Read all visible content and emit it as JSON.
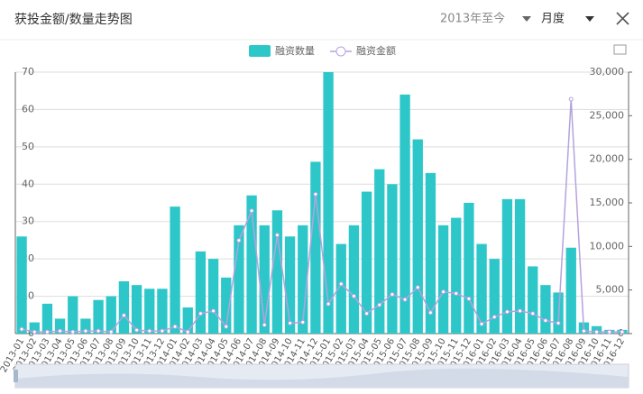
{
  "header": {
    "title": "获投金额/数量走势图",
    "period": "2013年至今",
    "granularity": "月度"
  },
  "chart_data": {
    "type": "bar-line",
    "categories": [
      "2013-01",
      "2013-02",
      "2013-03",
      "2013-04",
      "2013-05",
      "2013-06",
      "2013-07",
      "2013-08",
      "2013-09",
      "2013-10",
      "2013-11",
      "2013-12",
      "2014-01",
      "2014-02",
      "2014-03",
      "2014-04",
      "2014-05",
      "2014-06",
      "2014-07",
      "2014-08",
      "2014-09",
      "2014-10",
      "2014-11",
      "2014-12",
      "2015-01",
      "2015-02",
      "2015-03",
      "2015-04",
      "2015-05",
      "2015-06",
      "2015-07",
      "2015-08",
      "2015-09",
      "2015-10",
      "2015-11",
      "2015-12",
      "2016-01",
      "2016-02",
      "2016-03",
      "2016-04",
      "2016-05",
      "2016-06",
      "2016-07",
      "2016-08",
      "2016-09",
      "2016-10",
      "2016-11",
      "2016-12"
    ],
    "series": [
      {
        "name": "融资数量",
        "color": "#2ec7c9",
        "kind": "bar",
        "values": [
          26,
          3,
          8,
          4,
          10,
          4,
          9,
          10,
          14,
          13,
          12,
          12,
          34,
          7,
          22,
          20,
          15,
          29,
          37,
          29,
          33,
          26,
          29,
          46,
          70,
          24,
          29,
          38,
          44,
          40,
          64,
          52,
          43,
          29,
          31,
          35,
          24,
          20,
          36,
          36,
          18,
          13,
          11,
          23,
          3,
          2,
          1,
          1
        ]
      },
      {
        "name": "融资金额",
        "color": "#b6a2de",
        "kind": "line",
        "axis": "y2",
        "values": [
          500,
          200,
          200,
          300,
          200,
          300,
          300,
          200,
          2100,
          400,
          300,
          300,
          800,
          200,
          2300,
          2600,
          800,
          10700,
          14100,
          1000,
          11300,
          1200,
          1300,
          16000,
          3400,
          5700,
          4300,
          2300,
          3300,
          4500,
          3900,
          5300,
          2400,
          4800,
          4600,
          4000,
          1100,
          1900,
          2500,
          2600,
          2300,
          1500,
          1200,
          26900,
          300,
          200,
          200,
          200
        ]
      }
    ],
    "ylim": [
      0,
      70
    ],
    "yticks": [
      0,
      10,
      20,
      30,
      40,
      50,
      60,
      70
    ],
    "y2lim": [
      0,
      30000
    ],
    "y2ticks": [
      0,
      {
        "value": 5000,
        "label": "5,000"
      },
      {
        "value": 10000,
        "label": "10,000"
      },
      {
        "value": 15000,
        "label": "15,000"
      },
      {
        "value": 20000,
        "label": "20,000"
      },
      {
        "value": 25000,
        "label": "25,000"
      },
      {
        "value": 30000,
        "label": "30,000"
      }
    ],
    "grid": true
  }
}
